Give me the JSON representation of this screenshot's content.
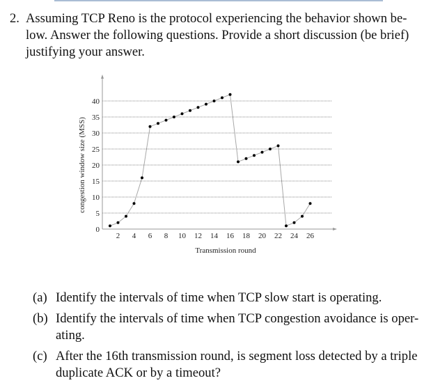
{
  "document": {
    "question_number": "2.",
    "question_text": "Assuming TCP Reno is the protocol experiencing the behavior shown below. Answer the following questions. Provide a short discussion (be brief) justifying your answer.",
    "question_lines": [
      "Assuming TCP Reno is the protocol experiencing the behavior shown be-",
      "low. Answer the following questions. Provide a short discussion (be brief)",
      "justifying your answer."
    ],
    "subquestions": [
      {
        "label": "(a)",
        "lines": [
          "Identify the intervals of time when TCP slow start is operating."
        ]
      },
      {
        "label": "(b)",
        "lines": [
          "Identify the intervals of time when TCP congestion avoidance is oper-",
          "ating."
        ]
      },
      {
        "label": "(c)",
        "lines": [
          "After the 16th transmission round, is segment loss detected by a triple",
          "duplicate ACK or by a timeout?"
        ]
      }
    ]
  },
  "chart_data": {
    "type": "line",
    "title": "",
    "xlabel": "Transmission round",
    "ylabel": "congestion window size (MSS)",
    "xlim": [
      0,
      29
    ],
    "ylim": [
      0,
      44
    ],
    "x_ticks": [
      2,
      4,
      6,
      8,
      10,
      12,
      14,
      16,
      18,
      20,
      22,
      24,
      26
    ],
    "y_ticks": [
      0,
      5,
      10,
      15,
      20,
      25,
      30,
      35,
      40
    ],
    "grid": "horizontal dotted",
    "legend": "none",
    "x": [
      1,
      2,
      3,
      4,
      5,
      6,
      7,
      8,
      9,
      10,
      11,
      12,
      13,
      14,
      15,
      16,
      17,
      18,
      19,
      20,
      21,
      22,
      23,
      24,
      25,
      26
    ],
    "series": [
      {
        "name": "congestion window",
        "values": [
          1,
          2,
          4,
          8,
          16,
          32,
          33,
          34,
          35,
          36,
          37,
          38,
          39,
          40,
          41,
          42,
          21,
          22,
          23,
          24,
          25,
          26,
          1,
          2,
          4,
          8
        ]
      }
    ]
  }
}
